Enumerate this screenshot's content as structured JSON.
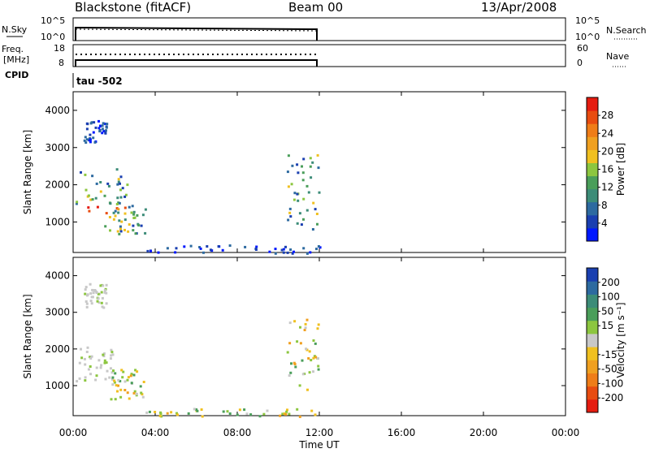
{
  "header": {
    "station": "Blackstone (fitACF)",
    "beam": "Beam 00",
    "date": "13/Apr/2008"
  },
  "param_panel": {
    "left_labels": {
      "nsky": "N.Sky",
      "freq_line1": "Freq.",
      "freq_line2": "[MHz]",
      "cpid": "CPID"
    },
    "right_labels": {
      "nsearch": "N.Search",
      "nave": "Nave"
    },
    "nsky_ticks": [
      "10^5",
      "10^0"
    ],
    "nsearch_ticks": [
      "10^5",
      "10^0"
    ],
    "freq_ticks": [
      "18",
      "8"
    ],
    "nave_ticks": [
      "60",
      "0"
    ],
    "cpid_text": "tau -502"
  },
  "chart_data": [
    {
      "type": "heatmap",
      "name": "power_panel",
      "xlabel": "",
      "ylabel": "Slant Range [km]",
      "x_unit": "UT hours",
      "xlim": [
        0,
        24
      ],
      "ylim": [
        180,
        4500
      ],
      "yticks": [
        "1000",
        "2000",
        "3000",
        "4000"
      ],
      "colorbar": {
        "label": "Power [dB]",
        "ticks": [
          "4",
          "8",
          "12",
          "16",
          "20",
          "24",
          "28"
        ],
        "range": [
          0,
          32
        ],
        "colors": [
          "#0018ff",
          "#1a3fb0",
          "#2d6aa0",
          "#3c8c78",
          "#4a9e5a",
          "#8cc63f",
          "#f0c020",
          "#f0a020",
          "#ef7d18",
          "#e84c10",
          "#e51c10"
        ]
      },
      "data_extent": {
        "x_range_hours": [
          0,
          12
        ],
        "features": [
          {
            "x": [
              0.1,
              2.6
            ],
            "y": [
              1150,
              2450
            ],
            "level": "strong"
          },
          {
            "x": [
              1.5,
              3.5
            ],
            "y": [
              700,
              1550
            ],
            "level": "moderate"
          },
          {
            "x": [
              0.5,
              1.6
            ],
            "y": [
              3150,
              3800
            ],
            "level": "weak"
          },
          {
            "x": [
              10.4,
              12.0
            ],
            "y": [
              800,
              2900
            ],
            "level": "moderate"
          },
          {
            "x": [
              3.5,
              12.0
            ],
            "y": [
              180,
              400
            ],
            "level": "weak"
          }
        ]
      }
    },
    {
      "type": "heatmap",
      "name": "velocity_panel",
      "xlabel": "Time UT",
      "ylabel": "Slant Range [km]",
      "x_unit": "UT hours",
      "xlim": [
        0,
        24
      ],
      "ylim": [
        180,
        4500
      ],
      "xticks": [
        "00:00",
        "04:00",
        "08:00",
        "12:00",
        "16:00",
        "20:00",
        "00:00"
      ],
      "yticks": [
        "1000",
        "2000",
        "3000",
        "4000"
      ],
      "colorbar": {
        "label": "Velocity [m s⁻¹]",
        "ticks": [
          "200",
          "100",
          "50",
          "15",
          "-15",
          "-50",
          "-100",
          "-200"
        ],
        "range": [
          -250,
          250
        ],
        "colors": [
          "#1a3fb0",
          "#2d6aa0",
          "#3c8c78",
          "#4a9e5a",
          "#8cc63f",
          "#c8c8c8",
          "#f0c020",
          "#f0a020",
          "#ef7d18",
          "#e84c10",
          "#e51c10"
        ]
      },
      "data_extent": {
        "x_range_hours": [
          0,
          12
        ],
        "features": [
          {
            "x": [
              0.1,
              2.0
            ],
            "y": [
              1150,
              2100
            ],
            "level": "near-zero"
          },
          {
            "x": [
              1.8,
              3.5
            ],
            "y": [
              650,
              1550
            ],
            "level": "mixed"
          },
          {
            "x": [
              0.5,
              1.6
            ],
            "y": [
              3150,
              3800
            ],
            "level": "near-zero"
          },
          {
            "x": [
              10.4,
              12.0
            ],
            "y": [
              900,
              2900
            ],
            "level": "mixed"
          },
          {
            "x": [
              3.5,
              12.0
            ],
            "y": [
              180,
              400
            ],
            "level": "mixed"
          }
        ]
      }
    }
  ]
}
